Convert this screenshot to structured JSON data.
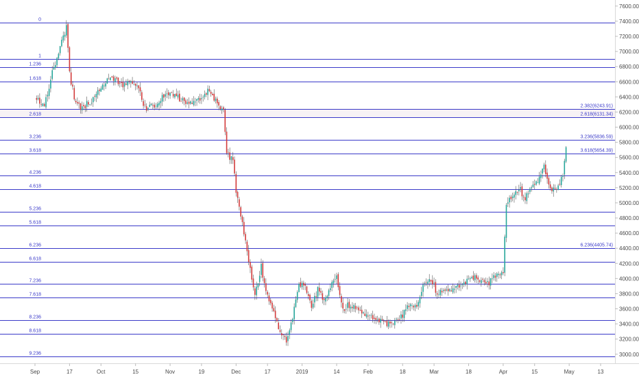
{
  "chart_data": {
    "type": "candlestick",
    "title": "",
    "xlabel": "",
    "ylabel": "",
    "ylim": [
      2880,
      7680
    ],
    "grid": false,
    "x_ticks": [
      "Sep",
      "17",
      "Oct",
      "15",
      "Nov",
      "19",
      "Dec",
      "17",
      "2019",
      "14",
      "Feb",
      "18",
      "Mar",
      "18",
      "Apr",
      "15",
      "May",
      "13"
    ],
    "x_tick_slots": [
      0,
      11,
      21,
      32,
      43,
      53,
      64,
      74,
      85,
      96,
      106,
      117,
      127,
      138,
      149,
      159,
      170,
      180
    ],
    "y_ticks": [
      "3000.00",
      "3200.00",
      "3400.00",
      "3600.00",
      "3800.00",
      "4000.00",
      "4200.00",
      "4400.00",
      "4600.00",
      "4800.00",
      "5000.00",
      "5200.00",
      "5400.00",
      "5600.00",
      "5800.00",
      "6000.00",
      "6200.00",
      "6400.00",
      "6600.00",
      "6800.00",
      "7000.00",
      "7200.00",
      "7400.00",
      "7600.00"
    ],
    "y_tick_values": [
      3000,
      3200,
      3400,
      3600,
      3800,
      4000,
      4200,
      4400,
      4600,
      4800,
      5000,
      5200,
      5400,
      5600,
      5800,
      6000,
      6200,
      6400,
      6600,
      6800,
      7000,
      7200,
      7400,
      7600
    ],
    "fib_levels": [
      {
        "label": "0",
        "price": 7380,
        "right_label": ""
      },
      {
        "label": "1",
        "price": 6905,
        "right_label": ""
      },
      {
        "label": "1.236",
        "price": 6795,
        "right_label": ""
      },
      {
        "label": "1.618",
        "price": 6605,
        "right_label": ""
      },
      {
        "label": "",
        "price": 6243.91,
        "right_label": "2.382(6243.91)"
      },
      {
        "label": "2.618",
        "price": 6131.34,
        "right_label": "2.618(6131.34)"
      },
      {
        "label": "3.236",
        "price": 5836.59,
        "right_label": "3.236(5836.59)"
      },
      {
        "label": "3.618",
        "price": 5654.39,
        "right_label": "3.618(5654.39)"
      },
      {
        "label": "4.236",
        "price": 5360,
        "right_label": ""
      },
      {
        "label": "4.618",
        "price": 5178,
        "right_label": ""
      },
      {
        "label": "5.236",
        "price": 4883,
        "right_label": ""
      },
      {
        "label": "5.618",
        "price": 4700,
        "right_label": ""
      },
      {
        "label": "6.236",
        "price": 4405.74,
        "right_label": "6.236(4405.74)"
      },
      {
        "label": "6.618",
        "price": 4223,
        "right_label": ""
      },
      {
        "label": "7.236",
        "price": 3928,
        "right_label": ""
      },
      {
        "label": "7.618",
        "price": 3746,
        "right_label": ""
      },
      {
        "label": "8.236",
        "price": 3452,
        "right_label": ""
      },
      {
        "label": "8.618",
        "price": 3270,
        "right_label": ""
      },
      {
        "label": "9.236",
        "price": 2975,
        "right_label": ""
      }
    ],
    "close_path": [
      [
        0,
        6400
      ],
      [
        3,
        6300
      ],
      [
        6,
        6800
      ],
      [
        8,
        7050
      ],
      [
        10,
        7330
      ],
      [
        11,
        6700
      ],
      [
        13,
        6300
      ],
      [
        15,
        6250
      ],
      [
        18,
        6350
      ],
      [
        21,
        6500
      ],
      [
        24,
        6700
      ],
      [
        27,
        6550
      ],
      [
        30,
        6600
      ],
      [
        33,
        6500
      ],
      [
        35,
        6250
      ],
      [
        38,
        6280
      ],
      [
        41,
        6420
      ],
      [
        45,
        6420
      ],
      [
        48,
        6300
      ],
      [
        52,
        6380
      ],
      [
        55,
        6480
      ],
      [
        57,
        6360
      ],
      [
        60,
        6200
      ],
      [
        61,
        5650
      ],
      [
        63,
        5550
      ],
      [
        64,
        5150
      ],
      [
        66,
        4750
      ],
      [
        68,
        4200
      ],
      [
        70,
        3800
      ],
      [
        72,
        4150
      ],
      [
        74,
        3750
      ],
      [
        76,
        3550
      ],
      [
        78,
        3300
      ],
      [
        80,
        3200
      ],
      [
        82,
        3500
      ],
      [
        84,
        3900
      ],
      [
        86,
        3900
      ],
      [
        88,
        3600
      ],
      [
        90,
        3850
      ],
      [
        92,
        3700
      ],
      [
        94,
        3900
      ],
      [
        96,
        4000
      ],
      [
        98,
        3600
      ],
      [
        100,
        3650
      ],
      [
        104,
        3550
      ],
      [
        108,
        3500
      ],
      [
        112,
        3380
      ],
      [
        116,
        3450
      ],
      [
        119,
        3640
      ],
      [
        122,
        3660
      ],
      [
        124,
        3950
      ],
      [
        126,
        4000
      ],
      [
        128,
        3800
      ],
      [
        132,
        3850
      ],
      [
        136,
        3950
      ],
      [
        140,
        4000
      ],
      [
        144,
        3920
      ],
      [
        147,
        4050
      ],
      [
        149,
        4100
      ],
      [
        150,
        4950
      ],
      [
        152,
        5100
      ],
      [
        154,
        5200
      ],
      [
        156,
        5050
      ],
      [
        158,
        5200
      ],
      [
        160,
        5300
      ],
      [
        162,
        5500
      ],
      [
        164,
        5200
      ],
      [
        166,
        5150
      ],
      [
        168,
        5350
      ],
      [
        169,
        5750
      ]
    ],
    "highlights": [
      "5836.59",
      "5654.39"
    ]
  },
  "colors": {
    "up": "#26a69a",
    "down": "#d23b3b",
    "fib_line": "#3a3ac9",
    "fib_label": "#3a3ac9",
    "band": "#f7f2f5",
    "axis_text": "#4a4a4a"
  }
}
